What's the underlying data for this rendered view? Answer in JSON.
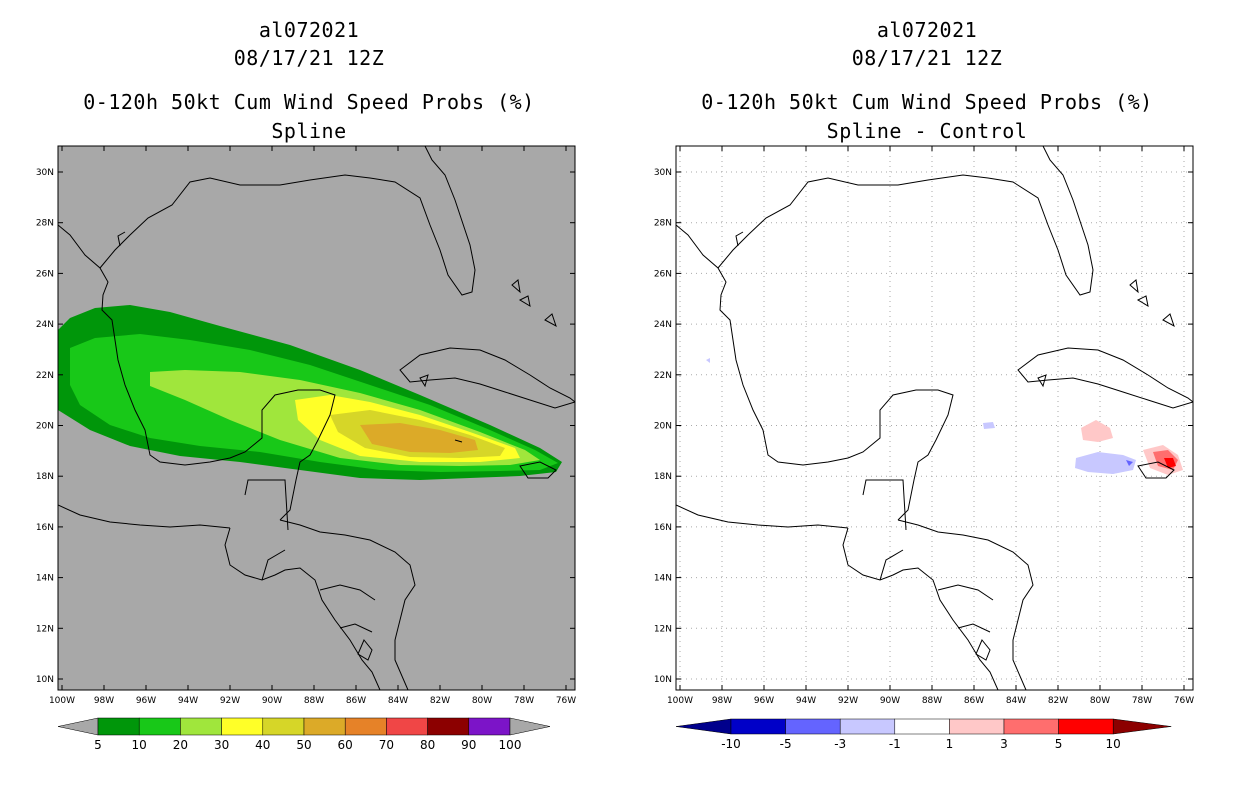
{
  "left": {
    "title_id": "al072021",
    "title_date": "08/17/21 12Z",
    "title_product": "0-120h 50kt Cum Wind Speed Probs (%)",
    "title_method": "Spline",
    "background_color": "#a8a8a8",
    "colorbar": {
      "labels": [
        "5",
        "10",
        "20",
        "30",
        "40",
        "50",
        "60",
        "70",
        "80",
        "90",
        "100"
      ],
      "colors": [
        "#00960a",
        "#18c818",
        "#a0e63c",
        "#ffff28",
        "#d6d628",
        "#dcaa28",
        "#e68228",
        "#f04646",
        "#8c0000",
        "#7c14c8"
      ]
    }
  },
  "right": {
    "title_id": "al072021",
    "title_date": "08/17/21 12Z",
    "title_product": "0-120h 50kt Cum Wind Speed Probs (%)",
    "title_method": "Spline - Control",
    "background_color": "#ffffff",
    "colorbar": {
      "labels": [
        "-10",
        "-5",
        "-3",
        "-1",
        "1",
        "3",
        "5",
        "10"
      ],
      "colors": [
        "#0000c8",
        "#6464ff",
        "#c8c8ff",
        "#ffffff",
        "#ffc8c8",
        "#ff6e6e",
        "#ff0000"
      ],
      "end_colors": [
        "#00008c",
        "#8c0000"
      ]
    }
  },
  "axes": {
    "lat_labels": [
      "30N",
      "28N",
      "26N",
      "24N",
      "22N",
      "20N",
      "18N",
      "16N",
      "14N",
      "12N",
      "10N"
    ],
    "lon_labels": [
      "100W",
      "98W",
      "96W",
      "94W",
      "92W",
      "90W",
      "88W",
      "86W",
      "84W",
      "82W",
      "80W",
      "78W",
      "76W"
    ]
  }
}
